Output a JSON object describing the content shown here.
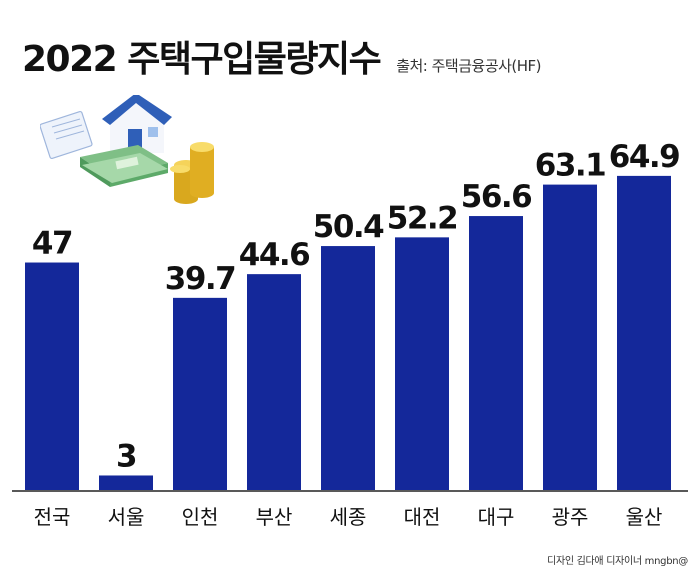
{
  "title": "2022 주택구입물량지수",
  "source": "출처: 주택금융공사(HF)",
  "credit": "디자인 김다애 디자이너 mngbn@",
  "colors": {
    "bar": "#14289a",
    "axis": "#222222",
    "text": "#111111"
  },
  "chart_data": {
    "type": "bar",
    "title": "2022 주택구입물량지수",
    "categories": [
      "전국",
      "서울",
      "인천",
      "부산",
      "세종",
      "대전",
      "대구",
      "광주",
      "울산"
    ],
    "values": [
      47,
      3,
      39.7,
      44.6,
      50.4,
      52.2,
      56.6,
      63.1,
      64.9
    ],
    "value_labels": [
      "47",
      "3",
      "39.7",
      "44.6",
      "50.4",
      "52.2",
      "56.6",
      "63.1",
      "64.9"
    ],
    "xlabel": "",
    "ylabel": "",
    "ylim": [
      0,
      80
    ],
    "grid": false,
    "legend": "none"
  }
}
